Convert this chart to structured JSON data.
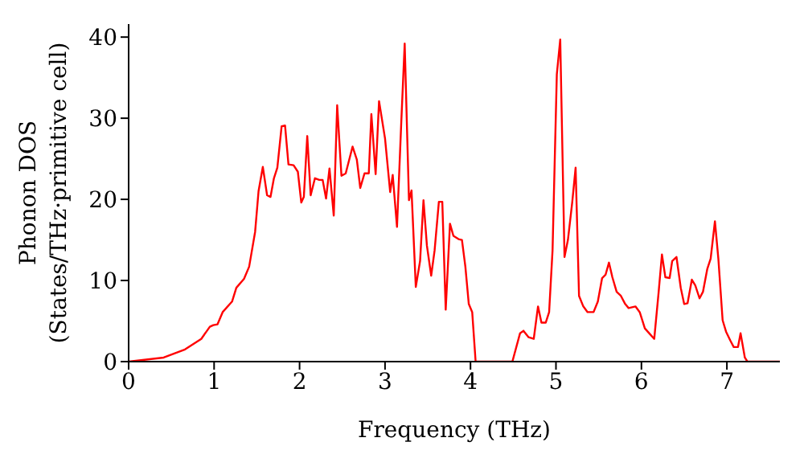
{
  "chart_data": {
    "type": "line",
    "xlabel": "Frequency (THz)",
    "ylabel": "Phonon DOS\n(States/THz·primitive cell)",
    "xlim": [
      0,
      7.62
    ],
    "ylim": [
      0,
      41.6
    ],
    "xticks": [
      0,
      1,
      2,
      3,
      4,
      5,
      6,
      7
    ],
    "yticks": [
      0,
      10,
      20,
      30,
      40
    ],
    "grid": false,
    "legend": false,
    "marker": "none",
    "line_style": "solid",
    "series": [
      {
        "color": "#ff0000",
        "x": [
          0,
          0.41,
          0.66,
          0.85,
          0.95,
          0.99,
          1.04,
          1.1,
          1.21,
          1.26,
          1.35,
          1.41,
          1.48,
          1.52,
          1.57,
          1.62,
          1.66,
          1.7,
          1.74,
          1.79,
          1.83,
          1.87,
          1.93,
          1.98,
          2.02,
          2.05,
          2.09,
          2.13,
          2.18,
          2.23,
          2.27,
          2.31,
          2.35,
          2.4,
          2.44,
          2.49,
          2.54,
          2.62,
          2.67,
          2.71,
          2.76,
          2.81,
          2.84,
          2.89,
          2.93,
          3,
          3.06,
          3.09,
          3.14,
          3.19,
          3.23,
          3.28,
          3.31,
          3.36,
          3.41,
          3.45,
          3.49,
          3.54,
          3.58,
          3.63,
          3.67,
          3.71,
          3.76,
          3.8,
          3.86,
          3.9,
          3.94,
          3.98,
          4.02,
          4.06,
          4.49,
          4.58,
          4.62,
          4.68,
          4.74,
          4.79,
          4.83,
          4.88,
          4.92,
          4.96,
          5.01,
          5.05,
          5.1,
          5.14,
          5.19,
          5.23,
          5.27,
          5.32,
          5.37,
          5.44,
          5.49,
          5.54,
          5.58,
          5.62,
          5.66,
          5.71,
          5.76,
          5.81,
          5.85,
          5.93,
          5.98,
          6.04,
          6.09,
          6.15,
          6.2,
          6.24,
          6.28,
          6.33,
          6.36,
          6.41,
          6.46,
          6.5,
          6.54,
          6.59,
          6.63,
          6.68,
          6.72,
          6.77,
          6.81,
          6.86,
          6.9,
          6.95,
          6.99,
          7.04,
          7.08,
          7.13,
          7.16,
          7.21,
          7.24,
          7.62
        ],
        "values": [
          0,
          0.5,
          1.5,
          2.8,
          4.3,
          4.5,
          4.6,
          6.1,
          7.4,
          9.1,
          10.2,
          11.7,
          16,
          21,
          24,
          20.5,
          20.3,
          22.6,
          23.9,
          29,
          29.1,
          24.3,
          24.2,
          23.4,
          19.6,
          20.3,
          27.8,
          20.5,
          22.6,
          22.4,
          22.4,
          20.1,
          23.8,
          18,
          31.6,
          22.9,
          23.2,
          26.5,
          24.9,
          21.4,
          23.2,
          23.2,
          30.5,
          23.1,
          32.1,
          27.5,
          20.9,
          23,
          16.6,
          29.5,
          39.2,
          19.9,
          21.1,
          9.2,
          12.4,
          19.9,
          14.3,
          10.6,
          13.7,
          19.7,
          19.7,
          6.4,
          17,
          15.5,
          15.1,
          15,
          11.7,
          7.1,
          6.1,
          0,
          0,
          3.5,
          3.8,
          3,
          2.8,
          6.8,
          4.8,
          4.8,
          6.1,
          13.7,
          35.4,
          39.7,
          12.9,
          15,
          19.6,
          23.9,
          8.1,
          6.8,
          6.1,
          6.1,
          7.4,
          10.3,
          10.7,
          12.2,
          10.4,
          8.6,
          8.1,
          7.1,
          6.6,
          6.8,
          6.1,
          4.1,
          3.5,
          2.8,
          8.4,
          13.2,
          10.4,
          10.3,
          12.4,
          12.9,
          9.1,
          7.1,
          7.2,
          10.1,
          9.4,
          7.8,
          8.6,
          11.4,
          12.7,
          17.3,
          12.7,
          5.1,
          3.7,
          2.6,
          1.8,
          1.8,
          3.5,
          0.5,
          0,
          0
        ]
      }
    ]
  }
}
